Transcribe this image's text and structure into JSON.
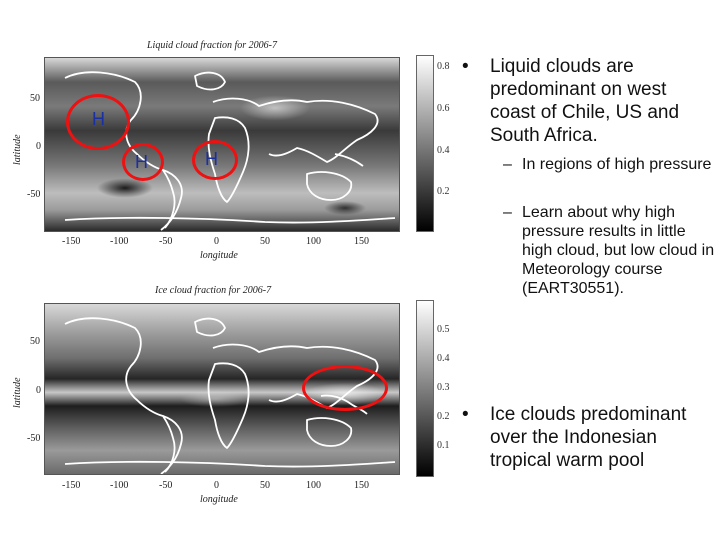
{
  "maps": [
    {
      "title": "Liquid cloud fraction for 2006-7",
      "ylabel": "latitude",
      "xlabel": "longitude",
      "yticks": [
        "50",
        "0",
        "-50"
      ],
      "xticks": [
        "-150",
        "-100",
        "-50",
        "0",
        "50",
        "100",
        "150"
      ],
      "colorbar_ticks": [
        "0.8",
        "0.6",
        "0.4",
        "0.2"
      ],
      "markers": [
        "H",
        "H",
        "H"
      ]
    },
    {
      "title": "Ice cloud fraction for 2006-7",
      "ylabel": "latitude",
      "xlabel": "longitude",
      "yticks": [
        "50",
        "0",
        "-50"
      ],
      "xticks": [
        "-150",
        "-100",
        "-50",
        "0",
        "50",
        "100",
        "150"
      ],
      "colorbar_ticks": [
        "0.5",
        "0.4",
        "0.3",
        "0.2",
        "0.1"
      ]
    }
  ],
  "bullets": [
    {
      "marker": "•",
      "text": "Liquid clouds are predominant on west coast of Chile, US and South Africa.",
      "sub": [
        {
          "marker": "–",
          "text": "In regions of high pressure"
        },
        {
          "marker": "–",
          "text": "Learn about why high pressure results in little high cloud, but low cloud in Meteorology course (EART30551)."
        }
      ]
    },
    {
      "marker": "•",
      "text": "Ice clouds predominant over the Indonesian tropical warm pool"
    }
  ],
  "colors": {
    "highlight_ring": "#e11111",
    "marker_text": "#1a2fa0"
  }
}
